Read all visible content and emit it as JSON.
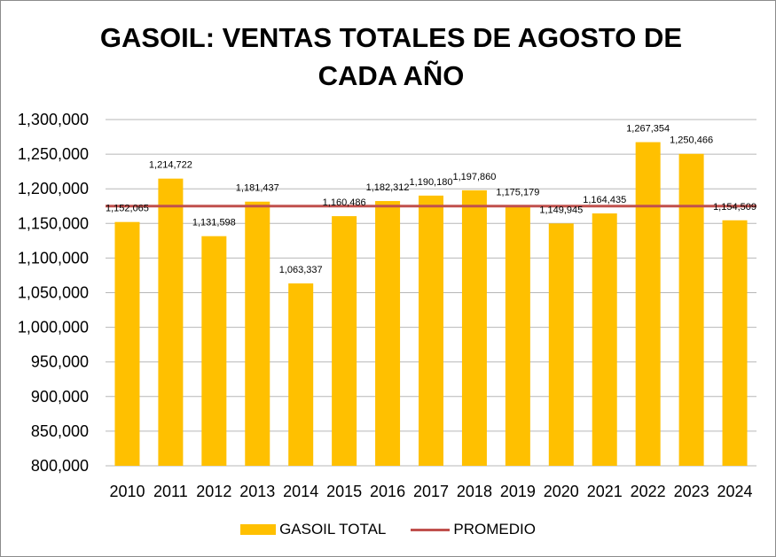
{
  "colors": {
    "bar": "#FFC000",
    "average_line": "#C0504D",
    "grid": "#B7B7B7"
  },
  "chart_data": {
    "type": "bar",
    "title": "GASOIL: VENTAS TOTALES DE AGOSTO DE CADA AÑO",
    "title_lines": [
      "GASOIL: VENTAS TOTALES DE AGOSTO DE",
      "CADA AÑO"
    ],
    "xlabel": "",
    "ylabel": "",
    "ylim": [
      800000,
      1300000
    ],
    "y_ticks": [
      800000,
      850000,
      900000,
      950000,
      1000000,
      1050000,
      1100000,
      1150000,
      1200000,
      1250000,
      1300000
    ],
    "y_tick_labels": [
      "800,000",
      "850,000",
      "900,000",
      "950,000",
      "1,000,000",
      "1,050,000",
      "1,100,000",
      "1,150,000",
      "1,200,000",
      "1,250,000",
      "1,300,000"
    ],
    "grid": true,
    "categories": [
      "2010",
      "2011",
      "2012",
      "2013",
      "2014",
      "2015",
      "2016",
      "2017",
      "2018",
      "2019",
      "2020",
      "2021",
      "2022",
      "2023",
      "2024"
    ],
    "series": [
      {
        "name": "GASOIL TOTAL",
        "type": "bar",
        "values": [
          1152065,
          1214722,
          1131598,
          1181437,
          1063337,
          1160486,
          1182312,
          1190180,
          1197860,
          1175179,
          1149945,
          1164435,
          1267354,
          1250466,
          1154509
        ],
        "value_labels": [
          "1,152,065",
          "1,214,722",
          "1,131,598",
          "1,181,437",
          "1,063,337",
          "1,160,486",
          "1,182,312",
          "1,190,180",
          "1,197,860",
          "1,175,179",
          "1,149,945",
          "1,164,435",
          "1,267,354",
          "1,250,466",
          "1,154,509"
        ]
      },
      {
        "name": "PROMEDIO",
        "type": "line",
        "value": 1175000
      }
    ],
    "legend": {
      "position": "bottom",
      "items": [
        "GASOIL TOTAL",
        "PROMEDIO"
      ]
    }
  }
}
